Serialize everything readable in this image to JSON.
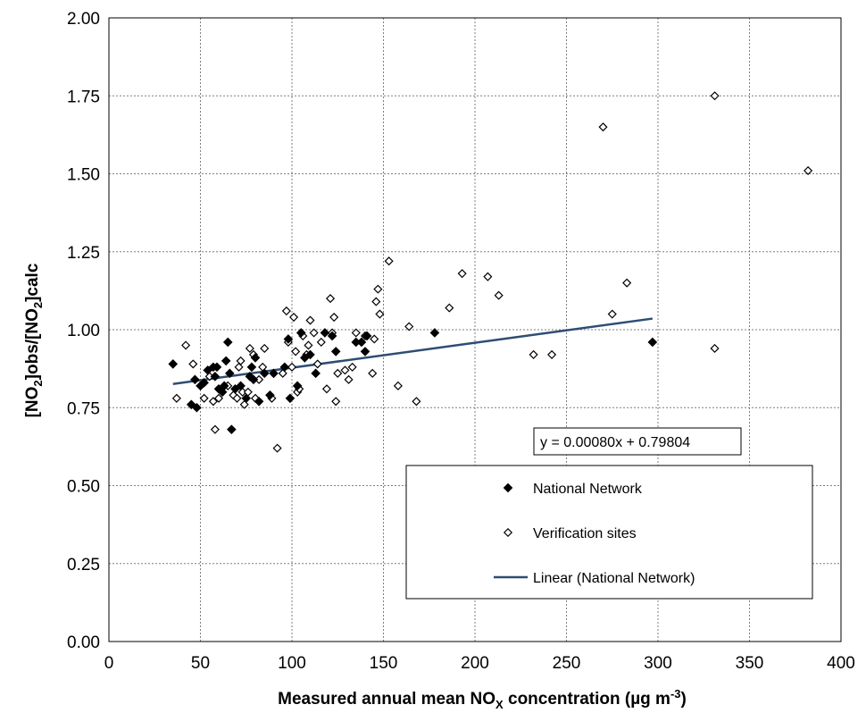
{
  "chart_data": {
    "type": "scatter",
    "xlabel_parts": [
      "Measured annual mean NO",
      "X",
      " concentration (µg m",
      "-3",
      ")"
    ],
    "ylabel_parts": [
      "[NO",
      "2",
      "]obs/[NO",
      "2",
      "]calc"
    ],
    "xlim": [
      0,
      400
    ],
    "ylim": [
      0,
      2
    ],
    "x_ticks": [
      0,
      50,
      100,
      150,
      200,
      250,
      300,
      350,
      400
    ],
    "y_ticks": [
      0,
      0.25,
      0.5,
      0.75,
      1.0,
      1.25,
      1.5,
      1.75,
      2.0
    ],
    "x_tick_labels": [
      "0",
      "50",
      "100",
      "150",
      "200",
      "250",
      "300",
      "350",
      "400"
    ],
    "y_tick_labels": [
      "0.00",
      "0.25",
      "0.50",
      "0.75",
      "1.00",
      "1.25",
      "1.50",
      "1.75",
      "2.00"
    ],
    "grid": true,
    "legend_position": "bottom-right",
    "series": [
      {
        "name": "National Network",
        "marker": "filled-diamond",
        "color": "#000000",
        "points": [
          [
            35,
            0.89
          ],
          [
            45,
            0.76
          ],
          [
            47,
            0.84
          ],
          [
            48,
            0.75
          ],
          [
            50,
            0.82
          ],
          [
            52,
            0.83
          ],
          [
            54,
            0.87
          ],
          [
            57,
            0.88
          ],
          [
            58,
            0.85
          ],
          [
            59,
            0.88
          ],
          [
            60,
            0.81
          ],
          [
            62,
            0.8
          ],
          [
            63,
            0.82
          ],
          [
            64,
            0.9
          ],
          [
            65,
            0.96
          ],
          [
            66,
            0.86
          ],
          [
            67,
            0.68
          ],
          [
            69,
            0.81
          ],
          [
            72,
            0.82
          ],
          [
            75,
            0.78
          ],
          [
            77,
            0.85
          ],
          [
            78,
            0.88
          ],
          [
            79,
            0.84
          ],
          [
            80,
            0.91
          ],
          [
            82,
            0.77
          ],
          [
            85,
            0.86
          ],
          [
            88,
            0.79
          ],
          [
            90,
            0.86
          ],
          [
            96,
            0.88
          ],
          [
            98,
            0.97
          ],
          [
            99,
            0.78
          ],
          [
            103,
            0.82
          ],
          [
            105,
            0.99
          ],
          [
            107,
            0.91
          ],
          [
            110,
            0.92
          ],
          [
            113,
            0.86
          ],
          [
            118,
            0.99
          ],
          [
            122,
            0.98
          ],
          [
            124,
            0.93
          ],
          [
            135,
            0.96
          ],
          [
            138,
            0.96
          ],
          [
            140,
            0.93
          ],
          [
            141,
            0.98
          ],
          [
            178,
            0.99
          ],
          [
            297,
            0.96
          ]
        ]
      },
      {
        "name": "Verification sites",
        "marker": "open-diamond",
        "color": "#000000",
        "points": [
          [
            37,
            0.78
          ],
          [
            42,
            0.95
          ],
          [
            46,
            0.89
          ],
          [
            52,
            0.78
          ],
          [
            55,
            0.85
          ],
          [
            57,
            0.77
          ],
          [
            58,
            0.68
          ],
          [
            60,
            0.78
          ],
          [
            62,
            0.8
          ],
          [
            65,
            0.82
          ],
          [
            68,
            0.79
          ],
          [
            70,
            0.78
          ],
          [
            71,
            0.88
          ],
          [
            72,
            0.9
          ],
          [
            73,
            0.8
          ],
          [
            74,
            0.76
          ],
          [
            76,
            0.8
          ],
          [
            77,
            0.94
          ],
          [
            79,
            0.92
          ],
          [
            80,
            0.78
          ],
          [
            82,
            0.84
          ],
          [
            84,
            0.88
          ],
          [
            85,
            0.94
          ],
          [
            88,
            0.79
          ],
          [
            89,
            0.78
          ],
          [
            90,
            0.86
          ],
          [
            92,
            0.62
          ],
          [
            95,
            0.86
          ],
          [
            97,
            1.06
          ],
          [
            98,
            0.96
          ],
          [
            100,
            0.88
          ],
          [
            101,
            1.04
          ],
          [
            102,
            0.93
          ],
          [
            103,
            0.8
          ],
          [
            104,
            0.81
          ],
          [
            105,
            0.99
          ],
          [
            106,
            0.98
          ],
          [
            108,
            0.92
          ],
          [
            109,
            0.95
          ],
          [
            110,
            1.03
          ],
          [
            112,
            0.99
          ],
          [
            114,
            0.89
          ],
          [
            116,
            0.96
          ],
          [
            119,
            0.81
          ],
          [
            121,
            1.1
          ],
          [
            122,
            0.99
          ],
          [
            123,
            1.04
          ],
          [
            124,
            0.77
          ],
          [
            125,
            0.86
          ],
          [
            129,
            0.87
          ],
          [
            131,
            0.84
          ],
          [
            133,
            0.88
          ],
          [
            135,
            0.99
          ],
          [
            138,
            0.96
          ],
          [
            140,
            0.98
          ],
          [
            144,
            0.86
          ],
          [
            145,
            0.97
          ],
          [
            146,
            1.09
          ],
          [
            147,
            1.13
          ],
          [
            148,
            1.05
          ],
          [
            153,
            1.22
          ],
          [
            158,
            0.82
          ],
          [
            164,
            1.01
          ],
          [
            168,
            0.77
          ],
          [
            186,
            1.07
          ],
          [
            193,
            1.18
          ],
          [
            207,
            1.17
          ],
          [
            213,
            1.11
          ],
          [
            232,
            0.92
          ],
          [
            242,
            0.92
          ],
          [
            270,
            1.65
          ],
          [
            275,
            1.05
          ],
          [
            283,
            1.15
          ],
          [
            331,
            1.75
          ],
          [
            331,
            0.94
          ],
          [
            382,
            1.51
          ]
        ]
      }
    ],
    "trendline": {
      "name": "Linear (National Network)",
      "slope": 0.0008,
      "intercept": 0.79804,
      "x_range": [
        35,
        297
      ],
      "color": "#2e4d73"
    },
    "equation_label": "y = 0.00080x + 0.79804",
    "legend": {
      "items": [
        {
          "label": "National Network",
          "marker": "filled-diamond"
        },
        {
          "label": "Verification sites",
          "marker": "open-diamond"
        },
        {
          "label": "Linear (National Network)",
          "marker": "line"
        }
      ]
    }
  }
}
